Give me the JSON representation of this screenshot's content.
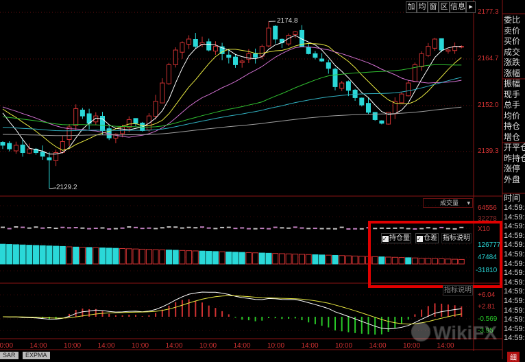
{
  "toolbar": {
    "buttons": [
      "加",
      "均",
      "窗",
      "区",
      "信息"
    ],
    "expand_icon": "arrow-right-bar-icon"
  },
  "price_axis": [
    "2177.3",
    "2164.7",
    "2152.0",
    "2139.3"
  ],
  "annotations": {
    "high": "2174.8",
    "low": "2129.2"
  },
  "volume_panel": {
    "indicator_select": "成交量",
    "axis": [
      "64556",
      "32278",
      "X10"
    ],
    "oi_axis": [
      "126777",
      "47484",
      "-31810"
    ],
    "checkboxes": [
      "持仓量",
      "仓差"
    ],
    "help_button": "指标说明"
  },
  "macd_panel": {
    "help_button": "指标说明",
    "axis": [
      "+6.04",
      "+2.81",
      "-0.569",
      "-3.95"
    ]
  },
  "x_axis": [
    "10:00",
    "14:00",
    "10:00",
    "14:00",
    "10:00",
    "14:00",
    "10:00",
    "14:00",
    "10:00",
    "14:00",
    "10:00",
    "14:00",
    "10:00",
    "14:00"
  ],
  "bottom_tabs": [
    "SAR",
    "EXPMA"
  ],
  "quote_panel": {
    "labels": [
      "委比",
      "卖价",
      "买价",
      "成交",
      "涨跌",
      "涨幅",
      "振幅",
      "现手",
      "总手",
      "均价",
      "持仓",
      "增仓",
      "开平仓",
      "昨持仓",
      "涨停",
      "外盘"
    ],
    "time_header": "时间",
    "times": [
      "14:59:4",
      "14:59:4",
      "14:59:4",
      "14:59:4",
      "14:59:4",
      "14:59:4",
      "14:59:5",
      "14:59:5",
      "14:59:5",
      "14:59:5",
      "14:59:5",
      "14:59:5",
      "14:59:5",
      "14:59:5",
      "14:59:5"
    ],
    "bottom_tab": "细"
  },
  "watermark": "WikiFX",
  "colors": {
    "up": "#d23232",
    "down": "#2ad8d8",
    "highlight": "#e00000",
    "grid": "#6a1010"
  },
  "chart_data": {
    "type": "candlestick",
    "ylim": [
      2125,
      2178
    ],
    "closes": [
      2141,
      2140,
      2141,
      2139,
      2140,
      2139,
      2138,
      2137,
      2139,
      2142,
      2146,
      2151,
      2149,
      2147,
      2149,
      2145,
      2143,
      2144,
      2146,
      2148,
      2147,
      2145,
      2149,
      2153,
      2158,
      2163,
      2167,
      2169,
      2170,
      2168,
      2169,
      2167,
      2168,
      2166,
      2165,
      2163,
      2164,
      2166,
      2165,
      2168,
      2173,
      2170,
      2169,
      2171,
      2172,
      2168,
      2166,
      2165,
      2164,
      2162,
      2157,
      2158,
      2156,
      2154,
      2152,
      2150,
      2148,
      2147,
      2150,
      2153,
      2155,
      2158,
      2163,
      2166,
      2168,
      2170,
      2167,
      2167,
      2168,
      2168
    ],
    "high": 2174.8,
    "low": 2129.2,
    "moving_averages": [
      5,
      10,
      20,
      40,
      60,
      120
    ]
  }
}
